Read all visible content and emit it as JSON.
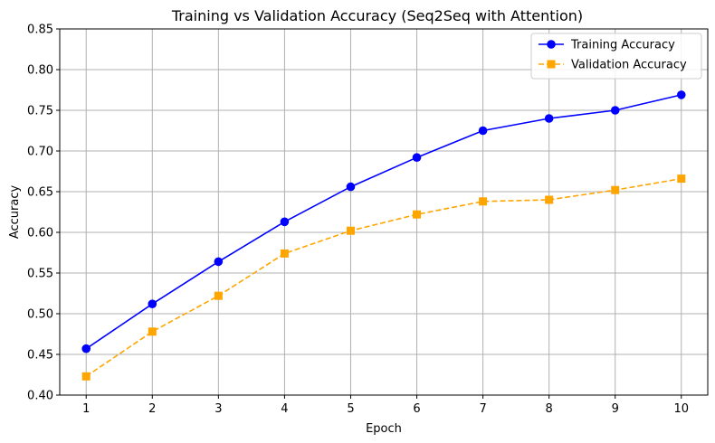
{
  "chart_data": {
    "type": "line",
    "title": "Training vs Validation Accuracy (Seq2Seq with Attention)",
    "xlabel": "Epoch",
    "ylabel": "Accuracy",
    "x": [
      1,
      2,
      3,
      4,
      5,
      6,
      7,
      8,
      9,
      10
    ],
    "xticks": [
      "1",
      "2",
      "3",
      "4",
      "5",
      "6",
      "7",
      "8",
      "9",
      "10"
    ],
    "yticks": [
      "0.40",
      "0.45",
      "0.50",
      "0.55",
      "0.60",
      "0.65",
      "0.70",
      "0.75",
      "0.80",
      "0.85"
    ],
    "xlim": [
      0.6,
      10.4
    ],
    "ylim": [
      0.4,
      0.85
    ],
    "grid": true,
    "legend_position": "upper-right",
    "series": [
      {
        "name": "Training Accuracy",
        "color": "#0000ff",
        "marker": "circle",
        "linestyle": "solid",
        "values": [
          0.457,
          0.512,
          0.564,
          0.613,
          0.656,
          0.692,
          0.725,
          0.74,
          0.75,
          0.769
        ]
      },
      {
        "name": "Validation Accuracy",
        "color": "#ffa500",
        "marker": "square",
        "linestyle": "dashed",
        "values": [
          0.423,
          0.478,
          0.522,
          0.574,
          0.602,
          0.622,
          0.638,
          0.64,
          0.652,
          0.666
        ]
      }
    ]
  }
}
